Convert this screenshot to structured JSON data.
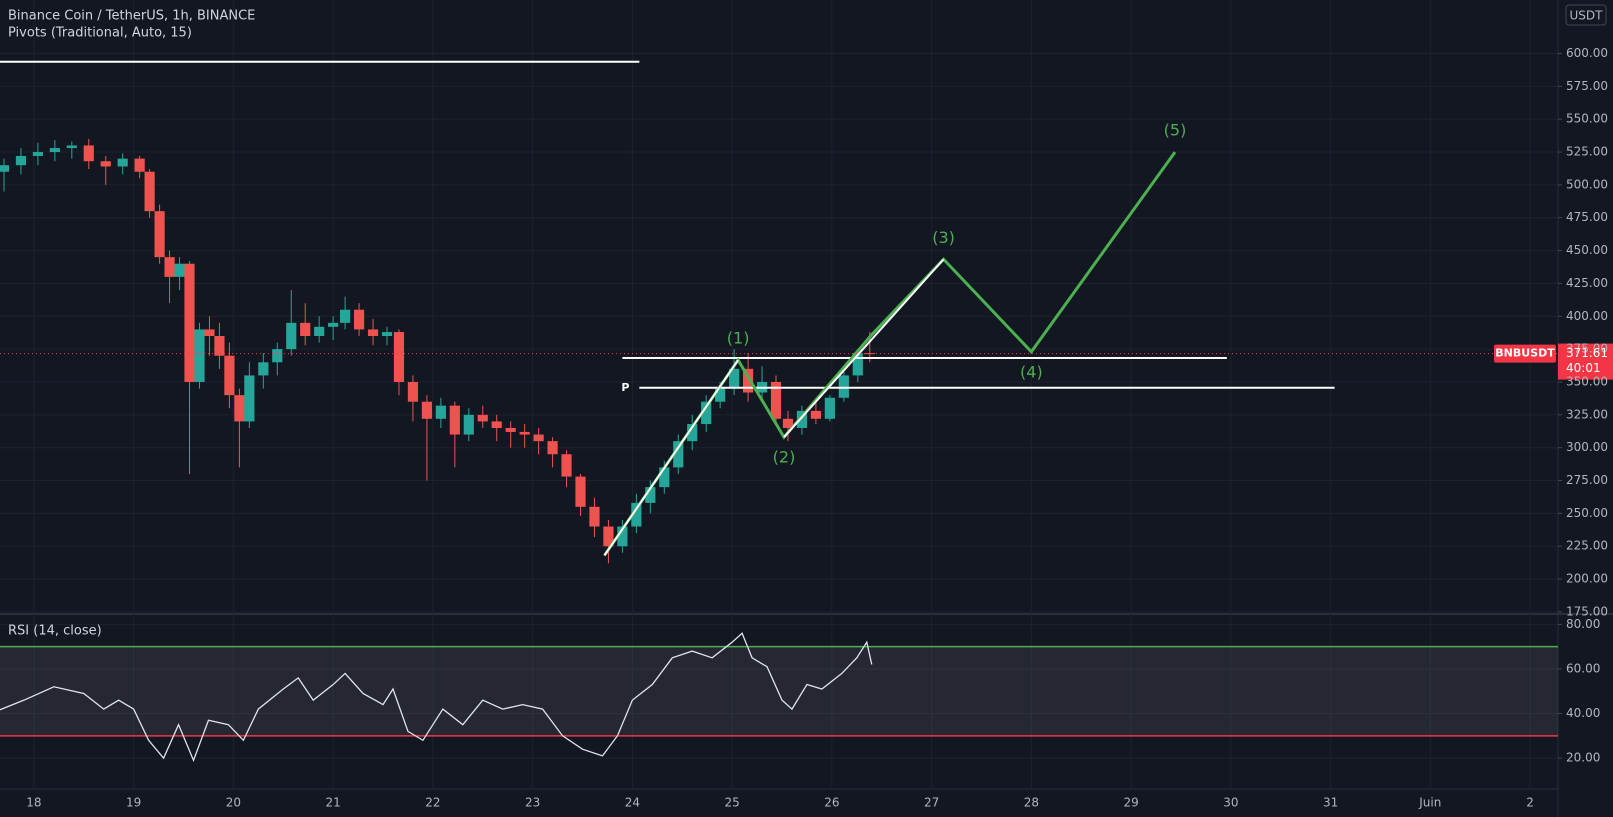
{
  "chart_data": [
    {
      "type": "candlestick",
      "title": "Binance Coin / TetherUS, 1h, BINANCE",
      "subtitle": "Pivots (Traditional, Auto, 15)",
      "currency": "USDT",
      "xlim": [
        -0.34,
        15.28
      ],
      "xticks": [
        {
          "value": 0,
          "label": "18"
        },
        {
          "value": 1,
          "label": "19"
        },
        {
          "value": 2,
          "label": "20"
        },
        {
          "value": 3,
          "label": "21"
        },
        {
          "value": 4,
          "label": "22"
        },
        {
          "value": 5,
          "label": "23"
        },
        {
          "value": 6,
          "label": "24"
        },
        {
          "value": 7,
          "label": "25"
        },
        {
          "value": 8,
          "label": "26"
        },
        {
          "value": 9,
          "label": "27"
        },
        {
          "value": 10,
          "label": "28"
        },
        {
          "value": 11,
          "label": "29"
        },
        {
          "value": 12,
          "label": "30"
        },
        {
          "value": 13,
          "label": "31"
        },
        {
          "value": 14,
          "label": "Juin"
        },
        {
          "value": 15,
          "label": "2"
        }
      ],
      "ylim": [
        174.2,
        640.7
      ],
      "yticks": [
        {
          "value": 175,
          "label": "175.00"
        },
        {
          "value": 200,
          "label": "200.00"
        },
        {
          "value": 225,
          "label": "225.00"
        },
        {
          "value": 250,
          "label": "250.00"
        },
        {
          "value": 275,
          "label": "275.00"
        },
        {
          "value": 300,
          "label": "300.00"
        },
        {
          "value": 325,
          "label": "325.00"
        },
        {
          "value": 350,
          "label": "350.00"
        },
        {
          "value": 375,
          "label": "375.00"
        },
        {
          "value": 400,
          "label": "400.00"
        },
        {
          "value": 425,
          "label": "425.00"
        },
        {
          "value": 450,
          "label": "450.00"
        },
        {
          "value": 475,
          "label": "475.00"
        },
        {
          "value": 500,
          "label": "500.00"
        },
        {
          "value": 525,
          "label": "525.00"
        },
        {
          "value": 550,
          "label": "550.00"
        },
        {
          "value": 575,
          "label": "575.00"
        },
        {
          "value": 600,
          "label": "600.00"
        }
      ],
      "grid": true,
      "up_color": "#26a69a",
      "down_color": "#ef5350",
      "x": [
        -0.3,
        -0.13,
        0.04,
        0.21,
        0.38,
        0.55,
        0.72,
        0.89,
        1.06,
        1.16,
        1.26,
        1.36,
        1.46,
        1.56,
        1.66,
        1.76,
        1.86,
        1.96,
        2.06,
        2.16,
        2.3,
        2.44,
        2.58,
        2.72,
        2.86,
        3.0,
        3.12,
        3.26,
        3.4,
        3.54,
        3.66,
        3.8,
        3.94,
        4.08,
        4.22,
        4.36,
        4.5,
        4.64,
        4.78,
        4.92,
        5.06,
        5.2,
        5.34,
        5.48,
        5.62,
        5.76,
        5.9,
        6.04,
        6.18,
        6.32,
        6.46,
        6.6,
        6.74,
        6.88,
        7.02,
        7.16,
        7.3,
        7.44,
        7.56,
        7.7,
        7.84,
        7.98,
        8.12,
        8.26,
        8.38
      ],
      "open": [
        510,
        515,
        522,
        525,
        528,
        530,
        518,
        514,
        520,
        510,
        480,
        445,
        430,
        440,
        350,
        390,
        385,
        370,
        340,
        320,
        355,
        365,
        375,
        395,
        385,
        392,
        395,
        405,
        390,
        385,
        388,
        350,
        335,
        322,
        332,
        310,
        325,
        320,
        315,
        312,
        310,
        305,
        295,
        278,
        255,
        240,
        225,
        240,
        258,
        270,
        285,
        305,
        318,
        335,
        345,
        360,
        342,
        350,
        322,
        315,
        328,
        322,
        338,
        355,
        372
      ],
      "high": [
        520,
        528,
        532,
        534,
        533,
        535,
        522,
        524,
        522,
        512,
        485,
        450,
        445,
        442,
        395,
        400,
        395,
        380,
        345,
        365,
        372,
        380,
        420,
        410,
        400,
        400,
        415,
        410,
        398,
        392,
        390,
        355,
        340,
        338,
        335,
        330,
        332,
        325,
        320,
        318,
        315,
        308,
        298,
        280,
        262,
        245,
        245,
        265,
        275,
        290,
        310,
        325,
        340,
        350,
        375,
        372,
        362,
        355,
        328,
        332,
        338,
        340,
        358,
        375,
        388
      ],
      "low": [
        495,
        508,
        515,
        518,
        520,
        512,
        500,
        508,
        505,
        475,
        440,
        410,
        420,
        280,
        345,
        370,
        360,
        330,
        285,
        315,
        345,
        355,
        370,
        378,
        380,
        382,
        390,
        385,
        378,
        378,
        340,
        320,
        275,
        315,
        285,
        305,
        315,
        305,
        300,
        300,
        295,
        285,
        270,
        248,
        232,
        212,
        220,
        235,
        250,
        265,
        280,
        298,
        312,
        330,
        340,
        335,
        335,
        318,
        305,
        310,
        318,
        320,
        335,
        350,
        365
      ],
      "close": [
        515,
        522,
        525,
        528,
        530,
        518,
        514,
        520,
        510,
        480,
        445,
        430,
        440,
        350,
        390,
        385,
        370,
        340,
        320,
        355,
        365,
        375,
        395,
        385,
        392,
        395,
        405,
        390,
        385,
        388,
        350,
        335,
        322,
        332,
        310,
        325,
        320,
        315,
        312,
        310,
        305,
        295,
        278,
        255,
        240,
        225,
        240,
        258,
        270,
        285,
        305,
        318,
        335,
        345,
        360,
        342,
        350,
        322,
        315,
        328,
        322,
        338,
        355,
        372,
        371.61
      ],
      "wave": {
        "color": "#4caf50",
        "x": [
          5.72,
          7.06,
          7.52,
          8.4,
          9.12,
          10.0,
          11.44
        ],
        "y": [
          218,
          366.7,
          308,
          386,
          443.4,
          373,
          524.9
        ],
        "labels": [
          null,
          "(1)",
          "(2)",
          null,
          "(3)",
          "(4)",
          "(5)"
        ]
      },
      "trendlines": {
        "color": "#ffffff",
        "lines": [
          {
            "x": [
              5.72,
              7.06
            ],
            "y": [
              218,
              366.7
            ]
          },
          {
            "x": [
              7.52,
              9.12
            ],
            "y": [
              308,
              443.4
            ]
          }
        ]
      },
      "levels": [
        {
          "value": 593.7,
          "x": [
            -0.34,
            6.07
          ]
        },
        {
          "value": 368.3,
          "x": [
            5.9,
            11.96
          ]
        },
        {
          "label": "P",
          "value": 345.6,
          "x": [
            6.07,
            13.04
          ]
        }
      ],
      "last_price": {
        "symbol": "BNBUSDT",
        "value": 371.61,
        "countdown": "40:01",
        "color": "#f23645"
      }
    },
    {
      "type": "line",
      "title": "RSI (14, close)",
      "ylim": [
        6.6,
        84.2
      ],
      "yticks": [
        {
          "value": 20,
          "label": "20.00"
        },
        {
          "value": 40,
          "label": "40.00"
        },
        {
          "value": 60,
          "label": "60.00"
        },
        {
          "value": 80,
          "label": "80.00"
        }
      ],
      "bands": [
        {
          "value": 30,
          "color": "#f23645"
        },
        {
          "value": 70,
          "color": "#4caf50"
        }
      ],
      "series": [
        {
          "color": "#e0e3eb",
          "x": [
            -0.34,
            -0.1,
            0.2,
            0.5,
            0.7,
            0.85,
            1.0,
            1.15,
            1.3,
            1.45,
            1.6,
            1.75,
            1.95,
            2.1,
            2.25,
            2.5,
            2.65,
            2.8,
            3.0,
            3.12,
            3.3,
            3.5,
            3.6,
            3.75,
            3.9,
            4.1,
            4.3,
            4.5,
            4.7,
            4.9,
            5.1,
            5.3,
            5.5,
            5.7,
            5.85,
            6.0,
            6.2,
            6.4,
            6.6,
            6.8,
            7.0,
            7.1,
            7.2,
            7.35,
            7.5,
            7.6,
            7.75,
            7.9,
            8.1,
            8.25,
            8.35,
            8.4
          ],
          "values": [
            41.7,
            46,
            52,
            49,
            42,
            46,
            42,
            28,
            20,
            35,
            19,
            37,
            35,
            28,
            42,
            51,
            56,
            46,
            53,
            58,
            49,
            44,
            51,
            32,
            28,
            42,
            35,
            46,
            42,
            44,
            42,
            30,
            24,
            21,
            30,
            46,
            53,
            65,
            68,
            65,
            72,
            76,
            65,
            61,
            46,
            42,
            53,
            51,
            58,
            65,
            72,
            62
          ]
        }
      ]
    }
  ]
}
